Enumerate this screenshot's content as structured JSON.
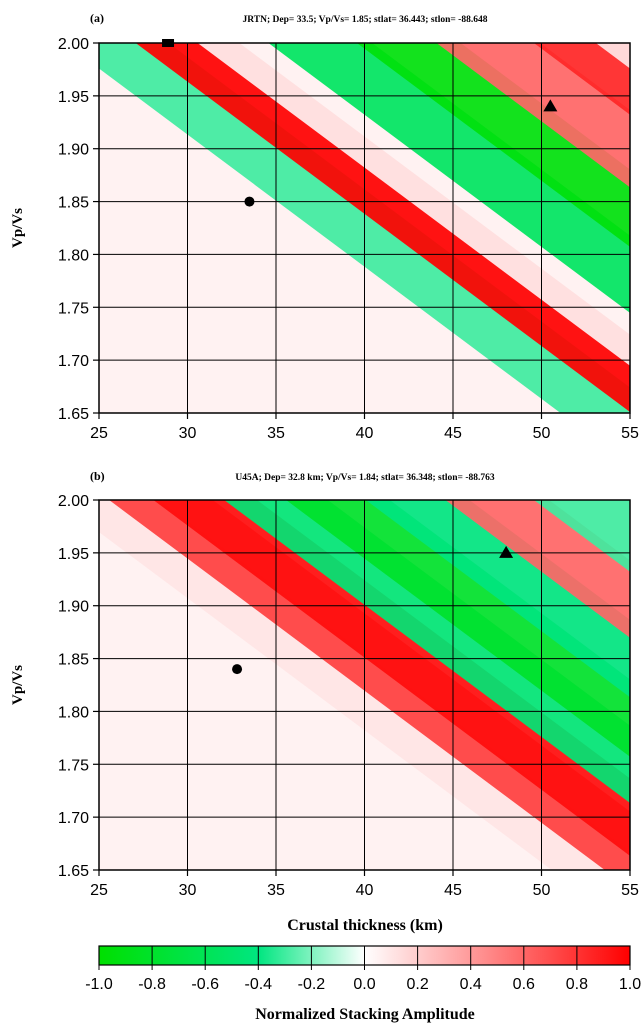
{
  "chart_data": [
    {
      "type": "heatmap",
      "panel_label": "(a)",
      "title": "JRTN; Dep= 33.5; Vp/Vs=  1.85; stlat=  36.443; stlon= -88.648",
      "xlabel": "",
      "ylabel": "Vp/Vs",
      "xlim": [
        25,
        55
      ],
      "ylim": [
        1.65,
        2.0
      ],
      "x_ticks": [
        "25",
        "30",
        "35",
        "40",
        "45",
        "50",
        "55"
      ],
      "y_ticks": [
        "1.65",
        "1.70",
        "1.75",
        "1.80",
        "1.85",
        "1.90",
        "1.95",
        "2.00"
      ],
      "grid": true,
      "bands": [
        {
          "peak_x_at_ymax": 26.0,
          "amplitude": -0.3
        },
        {
          "peak_x_at_ymax": 30.0,
          "amplitude": 1.0
        },
        {
          "peak_x_at_ymax": 33.5,
          "amplitude": 0.05
        },
        {
          "peak_x_at_ymax": 37.5,
          "amplitude": -0.55
        },
        {
          "peak_x_at_ymax": 42.5,
          "amplitude": -0.95
        },
        {
          "peak_x_at_ymax": 47.0,
          "amplitude": 0.6
        },
        {
          "peak_x_at_ymax": 52.5,
          "amplitude": 0.85
        },
        {
          "peak_x_at_ymax": 56.0,
          "amplitude": 0.1
        }
      ],
      "markers": [
        {
          "shape": "circle",
          "x": 33.5,
          "y": 1.85
        },
        {
          "shape": "square",
          "x": 28.9,
          "y": 2.0
        },
        {
          "shape": "triangle",
          "x": 50.5,
          "y": 1.94
        }
      ]
    },
    {
      "type": "heatmap",
      "panel_label": "(b)",
      "title": "U45A; Dep= 32.8 km; Vp/Vs= 1.84; stlat=  36.348; stlon= -88.763",
      "xlabel": "Crustal thickness (km)",
      "ylabel": "Vp/Vs",
      "xlim": [
        25,
        55
      ],
      "ylim": [
        1.65,
        2.0
      ],
      "x_ticks": [
        "25",
        "30",
        "35",
        "40",
        "45",
        "50",
        "55"
      ],
      "y_ticks": [
        "1.65",
        "1.70",
        "1.75",
        "1.80",
        "1.85",
        "1.90",
        "1.95",
        "2.00"
      ],
      "grid": true,
      "bands": [
        {
          "peak_x_at_ymax": 25.5,
          "amplitude": 0.1
        },
        {
          "peak_x_at_ymax": 28.5,
          "amplitude": 0.75
        },
        {
          "peak_x_at_ymax": 31.0,
          "amplitude": 0.95
        },
        {
          "peak_x_at_ymax": 35.0,
          "amplitude": -0.45
        },
        {
          "peak_x_at_ymax": 38.5,
          "amplitude": -0.8
        },
        {
          "peak_x_at_ymax": 43.0,
          "amplitude": -0.4
        },
        {
          "peak_x_at_ymax": 47.5,
          "amplitude": 0.6
        },
        {
          "peak_x_at_ymax": 52.5,
          "amplitude": -0.3
        }
      ],
      "markers": [
        {
          "shape": "circle",
          "x": 32.8,
          "y": 1.84
        },
        {
          "shape": "triangle",
          "x": 48.0,
          "y": 1.95
        }
      ]
    }
  ],
  "colorbar": {
    "label": "Normalized Stacking Amplitude",
    "range": [
      -1.0,
      1.0
    ],
    "ticks": [
      "-1.0",
      "-0.8",
      "-0.6",
      "-0.4",
      "-0.2",
      "0.0",
      "0.2",
      "0.4",
      "0.6",
      "0.8",
      "1.0"
    ],
    "colors": {
      "low": "#00e000",
      "mid": "#ffffff",
      "high": "#ff0000"
    }
  }
}
